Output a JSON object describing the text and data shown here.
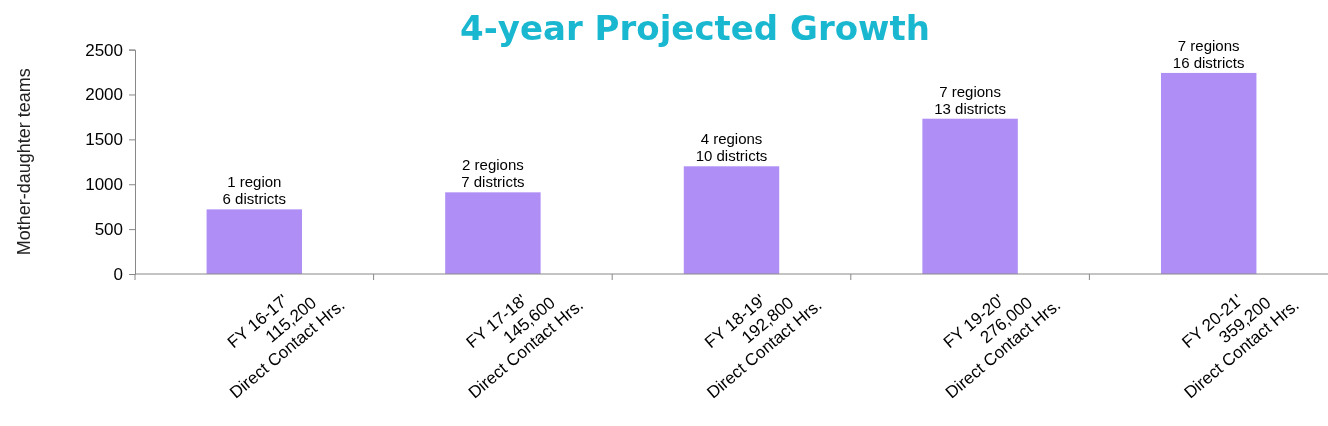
{
  "chart_data": {
    "type": "bar",
    "title": "4-year Projected Growth",
    "ylabel": "Mother-daughter teams",
    "categories": [
      "FY 16-17'\n115,200\nDirect Contact Hrs.",
      "FY 17-18'\n145,600\nDirect Contact Hrs.",
      "FY 18-19'\n192,800\nDirect Contact Hrs.",
      "FY 19-20'\n276,000\nDirect Contact Hrs.",
      "FY 20-21'\n359,200\nDirect Contact Hrs."
    ],
    "values": [
      720,
      910,
      1200,
      1730,
      2240
    ],
    "annotations": [
      {
        "text": "1 region\n6 districts",
        "x": "FY 16-17'\n115,200\nDirect Contact Hrs.",
        "y": 720
      },
      {
        "text": "2 regions\n7 districts",
        "x": "FY 17-18'\n145,600\nDirect Contact Hrs.",
        "y": 910
      },
      {
        "text": "4 regions\n10 districts",
        "x": "FY 18-19'\n192,800\nDirect Contact Hrs.",
        "y": 1200
      },
      {
        "text": "7 regions\n13 districts",
        "x": "FY 19-20'\n276,000\nDirect Contact Hrs.",
        "y": 1730
      },
      {
        "text": "7 regions\n16 districts",
        "x": "FY 20-21'\n359,200\nDirect Contact Hrs.",
        "y": 2240
      }
    ],
    "color": "#af8ff5",
    "ylim": [
      0,
      2500
    ],
    "yticks": [
      0,
      500,
      1000,
      1500,
      2000,
      2500
    ],
    "grid": false
  }
}
